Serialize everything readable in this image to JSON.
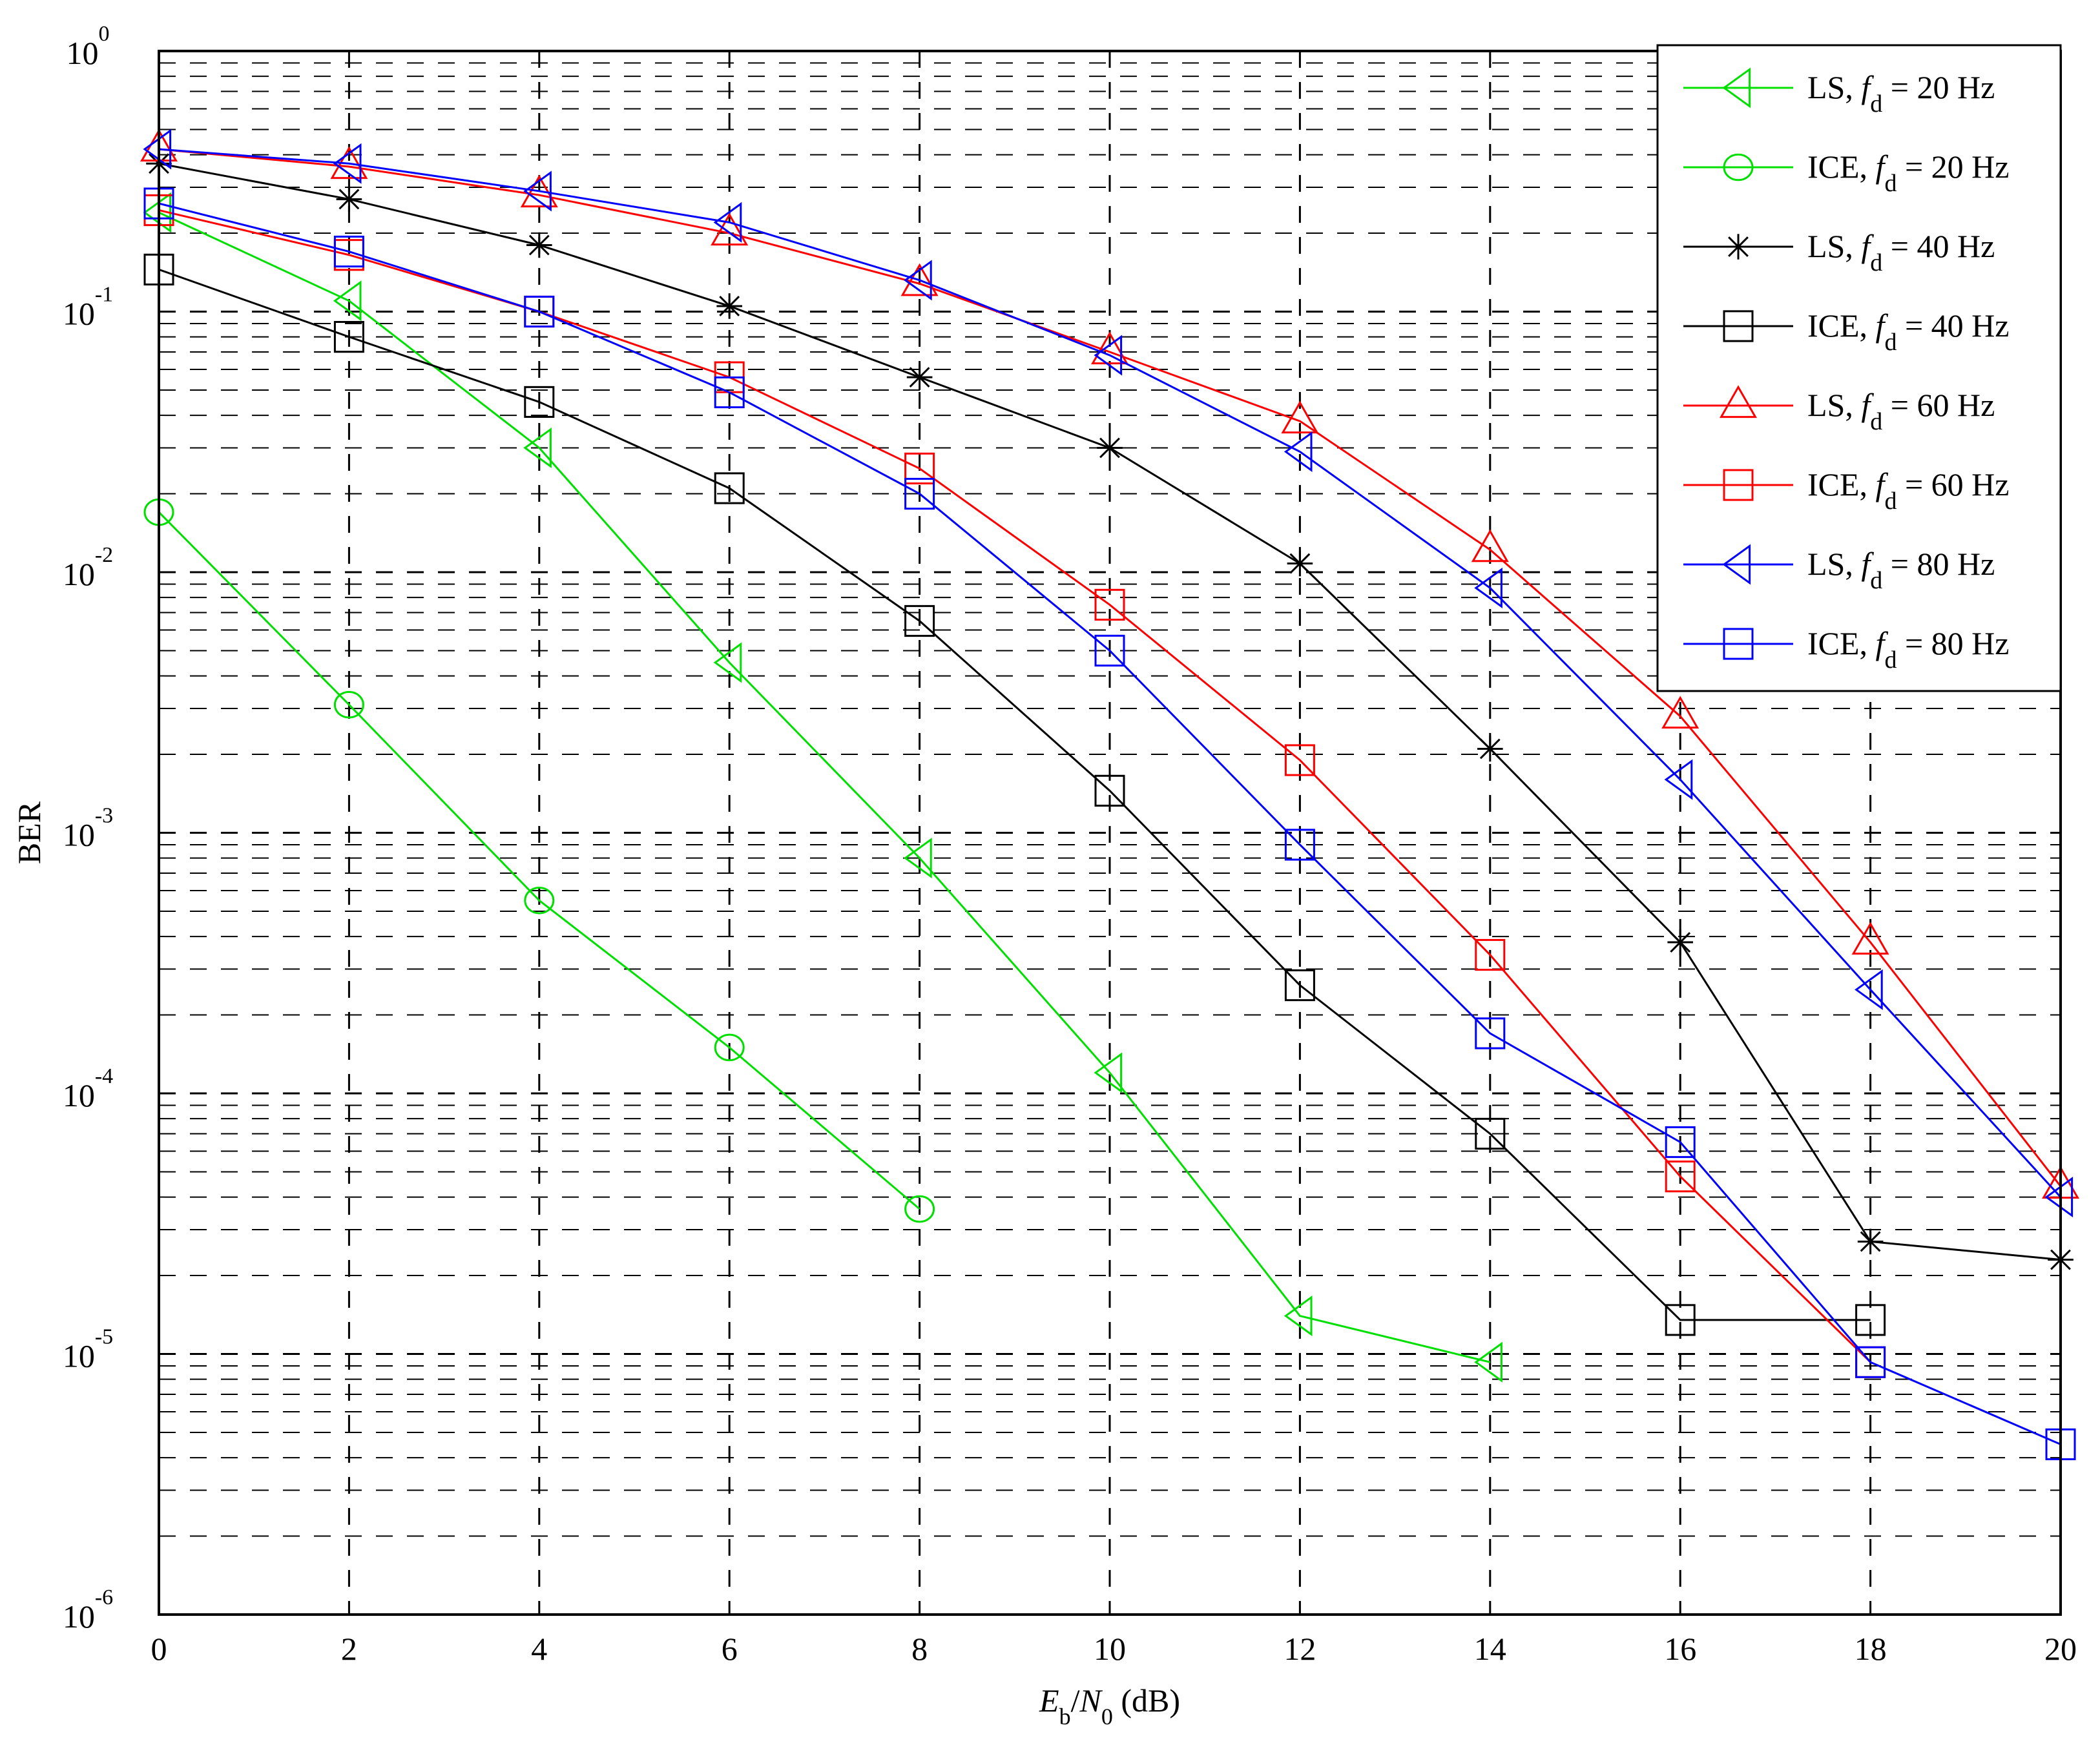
{
  "chart_data": {
    "type": "line",
    "title": "",
    "xlabel": "Eb/N0 (dB)",
    "xlabel_parts": {
      "E": "E",
      "b": "b",
      "slash": "/",
      "N": "N",
      "zero": "0",
      "unit": " (dB)"
    },
    "ylabel": "BER",
    "xlim": [
      0,
      20
    ],
    "ylim": [
      1e-06,
      1
    ],
    "yscale": "log",
    "grid": true,
    "legend_position": "upper right",
    "x_ticks": [
      "0",
      "2",
      "4",
      "6",
      "8",
      "10",
      "12",
      "14",
      "16",
      "18",
      "20"
    ],
    "y_ticks": [
      {
        "base": "10",
        "exp": "0"
      },
      {
        "base": "10",
        "exp": "-1"
      },
      {
        "base": "10",
        "exp": "-2"
      },
      {
        "base": "10",
        "exp": "-3"
      },
      {
        "base": "10",
        "exp": "-4"
      },
      {
        "base": "10",
        "exp": "-5"
      },
      {
        "base": "10",
        "exp": "-6"
      }
    ],
    "series": [
      {
        "name": "LS, fd = 20 Hz",
        "method": "LS",
        "fd": "20 Hz",
        "color": "#00e000",
        "marker": "triangle-left",
        "x": [
          0,
          2,
          4,
          6,
          8,
          10,
          12,
          14
        ],
        "values": [
          0.24,
          0.11,
          0.03,
          0.0045,
          0.0008,
          0.00012,
          1.4e-05,
          9.3e-06
        ]
      },
      {
        "name": "ICE, fd = 20 Hz",
        "method": "ICE",
        "fd": "20 Hz",
        "color": "#00e000",
        "marker": "circle",
        "x": [
          0,
          2,
          4,
          6,
          8
        ],
        "values": [
          0.017,
          0.0031,
          0.00055,
          0.00015,
          3.6e-05
        ]
      },
      {
        "name": "LS, fd = 40 Hz",
        "method": "LS",
        "fd": "40 Hz",
        "color": "#000000",
        "marker": "asterisk",
        "x": [
          0,
          2,
          4,
          6,
          8,
          10,
          12,
          14,
          16,
          18,
          20
        ],
        "values": [
          0.37,
          0.27,
          0.18,
          0.105,
          0.056,
          0.03,
          0.0108,
          0.0021,
          0.00038,
          2.7e-05,
          2.3e-05
        ]
      },
      {
        "name": "ICE, fd = 40 Hz",
        "method": "ICE",
        "fd": "40 Hz",
        "color": "#000000",
        "marker": "square",
        "x": [
          0,
          2,
          4,
          6,
          8,
          10,
          12,
          14,
          16,
          18
        ],
        "values": [
          0.145,
          0.08,
          0.045,
          0.021,
          0.0065,
          0.00145,
          0.00026,
          7e-05,
          1.35e-05,
          1.35e-05
        ]
      },
      {
        "name": "LS, fd = 60 Hz",
        "method": "LS",
        "fd": "60 Hz",
        "color": "#ff0000",
        "marker": "triangle-up",
        "x": [
          0,
          2,
          4,
          6,
          8,
          10,
          12,
          14,
          16,
          18,
          20
        ],
        "values": [
          0.42,
          0.36,
          0.28,
          0.2,
          0.128,
          0.07,
          0.038,
          0.0122,
          0.0028,
          0.00038,
          4.4e-05
        ]
      },
      {
        "name": "ICE, fd = 60 Hz",
        "method": "ICE",
        "fd": "60 Hz",
        "color": "#ff0000",
        "marker": "square",
        "x": [
          0,
          2,
          4,
          6,
          8,
          10,
          12,
          14,
          16,
          18
        ],
        "values": [
          0.245,
          0.165,
          0.1,
          0.056,
          0.025,
          0.0075,
          0.0019,
          0.00034,
          4.8e-05,
          9.3e-06
        ]
      },
      {
        "name": "LS, fd = 80 Hz",
        "method": "LS",
        "fd": "80 Hz",
        "color": "#0000ff",
        "marker": "triangle-left",
        "x": [
          0,
          2,
          4,
          6,
          8,
          10,
          12,
          14,
          16,
          18,
          20
        ],
        "values": [
          0.42,
          0.37,
          0.29,
          0.22,
          0.132,
          0.068,
          0.029,
          0.0087,
          0.0016,
          0.00025,
          4e-05
        ]
      },
      {
        "name": "ICE, fd = 80 Hz",
        "method": "ICE",
        "fd": "80 Hz",
        "color": "#0000ff",
        "marker": "square",
        "x": [
          0,
          2,
          4,
          6,
          8,
          10,
          12,
          14,
          16,
          18,
          20
        ],
        "values": [
          0.26,
          0.17,
          0.1,
          0.049,
          0.02,
          0.005,
          0.0009,
          0.00017,
          6.5e-05,
          9.3e-06,
          4.5e-06
        ]
      }
    ]
  }
}
